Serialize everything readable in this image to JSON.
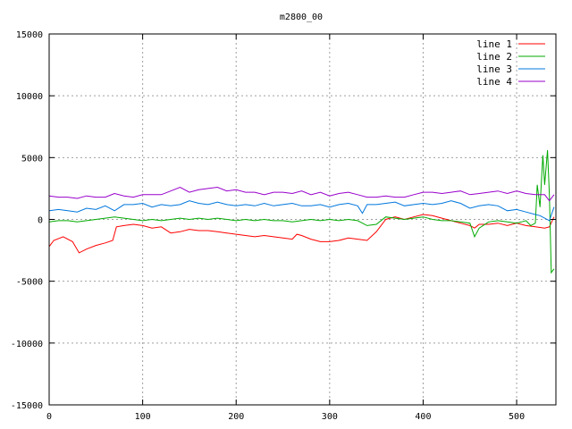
{
  "chart_data": {
    "type": "line",
    "title": "m2800_00",
    "xlabel": "",
    "ylabel": "",
    "xlim": [
      0,
      542
    ],
    "ylim": [
      -15000,
      15000
    ],
    "xticks": [
      0,
      100,
      200,
      300,
      400,
      500
    ],
    "yticks": [
      -15000,
      -10000,
      -5000,
      0,
      5000,
      10000,
      15000
    ],
    "grid": true,
    "legend_position": "top-right",
    "series": [
      {
        "name": "line 1",
        "color": "#ff0000",
        "x": [
          0,
          5,
          15,
          25,
          32,
          40,
          50,
          60,
          68,
          72,
          80,
          90,
          100,
          110,
          120,
          130,
          140,
          150,
          160,
          170,
          180,
          190,
          200,
          210,
          220,
          230,
          240,
          250,
          260,
          265,
          270,
          280,
          290,
          300,
          310,
          320,
          330,
          340,
          350,
          360,
          370,
          380,
          390,
          400,
          410,
          420,
          430,
          440,
          450,
          455,
          460,
          470,
          480,
          490,
          500,
          510,
          520,
          530,
          535,
          540
        ],
        "y": [
          -2200,
          -1700,
          -1400,
          -1800,
          -2700,
          -2400,
          -2100,
          -1900,
          -1700,
          -600,
          -500,
          -400,
          -500,
          -700,
          -600,
          -1100,
          -1000,
          -800,
          -900,
          -900,
          -1000,
          -1100,
          -1200,
          -1300,
          -1400,
          -1300,
          -1400,
          -1500,
          -1600,
          -1200,
          -1300,
          -1600,
          -1800,
          -1800,
          -1700,
          -1500,
          -1600,
          -1700,
          -1000,
          0,
          200,
          0,
          200,
          400,
          300,
          100,
          -100,
          -300,
          -500,
          -700,
          -400,
          -400,
          -300,
          -500,
          -300,
          -500,
          -600,
          -700,
          -600,
          200
        ]
      },
      {
        "name": "line 2",
        "color": "#00aa00",
        "x": [
          0,
          10,
          20,
          30,
          40,
          50,
          60,
          70,
          80,
          90,
          100,
          110,
          120,
          130,
          140,
          150,
          160,
          170,
          180,
          190,
          200,
          210,
          220,
          230,
          240,
          250,
          260,
          270,
          280,
          290,
          300,
          310,
          320,
          330,
          340,
          350,
          360,
          370,
          380,
          390,
          400,
          410,
          420,
          430,
          440,
          450,
          455,
          460,
          470,
          480,
          490,
          500,
          505,
          510,
          515,
          520,
          522,
          525,
          528,
          530,
          533,
          535,
          537,
          540
        ],
        "y": [
          -200,
          -100,
          -100,
          -200,
          -100,
          0,
          100,
          200,
          100,
          0,
          -100,
          0,
          -100,
          0,
          100,
          0,
          100,
          0,
          100,
          0,
          -100,
          0,
          -100,
          0,
          -100,
          -100,
          -200,
          -100,
          0,
          -100,
          0,
          -100,
          0,
          -100,
          -500,
          -400,
          200,
          100,
          0,
          100,
          200,
          0,
          -100,
          -100,
          -200,
          -300,
          -1400,
          -700,
          -200,
          -100,
          -200,
          -300,
          -200,
          -100,
          -500,
          -300,
          2800,
          1000,
          5200,
          2800,
          5600,
          2000,
          -4300,
          -4000
        ]
      },
      {
        "name": "line 3",
        "color": "#0077dd",
        "x": [
          0,
          10,
          20,
          30,
          40,
          50,
          60,
          70,
          80,
          90,
          100,
          110,
          120,
          130,
          140,
          150,
          160,
          170,
          180,
          190,
          200,
          210,
          220,
          230,
          240,
          250,
          260,
          270,
          280,
          290,
          300,
          310,
          320,
          330,
          335,
          340,
          350,
          360,
          370,
          380,
          390,
          400,
          410,
          420,
          430,
          440,
          450,
          460,
          470,
          480,
          490,
          500,
          510,
          520,
          525,
          530,
          535,
          540
        ],
        "y": [
          700,
          800,
          700,
          600,
          900,
          800,
          1100,
          700,
          1200,
          1200,
          1300,
          1000,
          1200,
          1100,
          1200,
          1500,
          1300,
          1200,
          1400,
          1200,
          1100,
          1200,
          1100,
          1300,
          1100,
          1200,
          1300,
          1100,
          1100,
          1200,
          1000,
          1200,
          1300,
          1100,
          500,
          1200,
          1200,
          1300,
          1400,
          1100,
          1200,
          1300,
          1200,
          1300,
          1500,
          1300,
          900,
          1100,
          1200,
          1100,
          700,
          800,
          600,
          400,
          300,
          100,
          -100,
          1000
        ]
      },
      {
        "name": "line 4",
        "color": "#9900cc",
        "x": [
          0,
          10,
          20,
          30,
          40,
          50,
          60,
          70,
          80,
          90,
          100,
          110,
          120,
          130,
          140,
          150,
          160,
          170,
          180,
          190,
          200,
          210,
          220,
          230,
          240,
          250,
          260,
          270,
          280,
          290,
          300,
          310,
          320,
          330,
          340,
          350,
          360,
          370,
          380,
          390,
          400,
          410,
          420,
          430,
          440,
          450,
          460,
          470,
          480,
          490,
          500,
          510,
          520,
          530,
          535,
          540
        ],
        "y": [
          1900,
          1800,
          1800,
          1700,
          1900,
          1800,
          1800,
          2100,
          1900,
          1800,
          2000,
          2000,
          2000,
          2300,
          2600,
          2200,
          2400,
          2500,
          2600,
          2300,
          2400,
          2200,
          2200,
          2000,
          2200,
          2200,
          2100,
          2300,
          2000,
          2200,
          1900,
          2100,
          2200,
          2000,
          1800,
          1800,
          1900,
          1800,
          1800,
          2000,
          2200,
          2200,
          2100,
          2200,
          2300,
          2000,
          2100,
          2200,
          2300,
          2100,
          2300,
          2100,
          2000,
          2000,
          1500,
          2000
        ]
      }
    ]
  }
}
